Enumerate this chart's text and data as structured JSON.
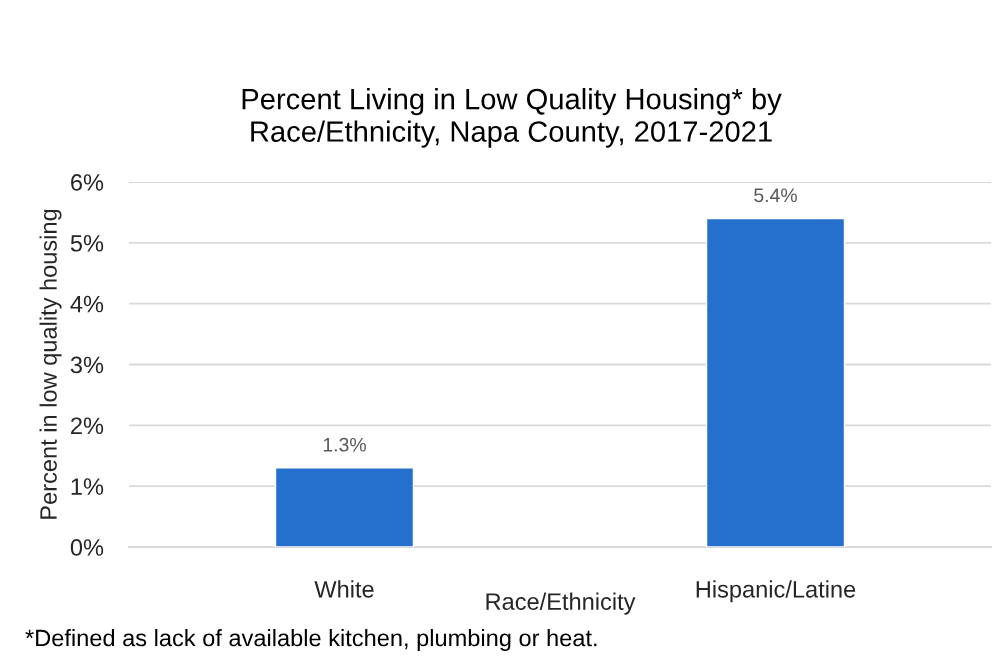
{
  "chart_data": {
    "type": "bar",
    "title": "Percent Living in Low Quality Housing* by\nRace/Ethnicity, Napa County, 2017-2021",
    "xlabel": "Race/Ethnicity",
    "ylabel": "Percent in low quality housing",
    "categories": [
      "White",
      "Hispanic/Latine"
    ],
    "values": [
      1.3,
      5.4
    ],
    "value_labels": [
      "1.3%",
      "5.4%"
    ],
    "color": "#2570cc",
    "ylim": [
      0,
      6
    ],
    "yticks": [
      {
        "value": 0,
        "label": "0%"
      },
      {
        "value": 1,
        "label": "1%"
      },
      {
        "value": 2,
        "label": "2%"
      },
      {
        "value": 3,
        "label": "3%"
      },
      {
        "value": 4,
        "label": "4%"
      },
      {
        "value": 5,
        "label": "5%"
      },
      {
        "value": 6,
        "label": "6%"
      }
    ],
    "grid": "y",
    "annotations": [
      "*Defined as lack of available kitchen, plumbing or heat."
    ]
  }
}
